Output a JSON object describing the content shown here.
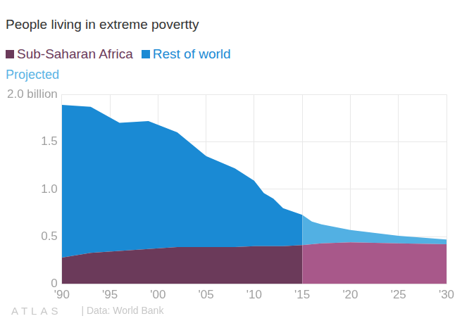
{
  "chart_data": {
    "type": "area",
    "title": "People living in extreme povertty",
    "x": [
      1990,
      1993,
      1996,
      1999,
      2002,
      2005,
      2008,
      2010,
      2011,
      2012,
      2013,
      2015,
      2016,
      2017,
      2020,
      2025,
      2030
    ],
    "series": [
      {
        "name": "Sub-Saharan Africa",
        "color": "#6b3a5a",
        "values": [
          0.28,
          0.33,
          0.35,
          0.37,
          0.39,
          0.39,
          0.39,
          0.4,
          0.4,
          0.4,
          0.4,
          0.41,
          null,
          null,
          null,
          null,
          null
        ]
      },
      {
        "name": "Rest of world",
        "color": "#1a8ad4",
        "values": [
          1.61,
          1.54,
          1.35,
          1.35,
          1.21,
          0.96,
          0.83,
          0.69,
          0.56,
          0.5,
          0.4,
          0.32,
          null,
          null,
          null,
          null,
          null
        ]
      },
      {
        "name": "Sub-Saharan Africa",
        "color": "#a8588a",
        "values": [
          null,
          null,
          null,
          null,
          null,
          null,
          null,
          null,
          null,
          null,
          null,
          0.41,
          0.42,
          0.43,
          0.44,
          0.43,
          0.42
        ]
      },
      {
        "name": "Rest of world",
        "color": "#52b0e3",
        "values": [
          null,
          null,
          null,
          null,
          null,
          null,
          null,
          null,
          null,
          null,
          null,
          0.32,
          0.24,
          0.2,
          0.13,
          0.08,
          0.05
        ]
      }
    ],
    "annotations": [
      {
        "text": "Projected"
      }
    ],
    "xlim": [
      1990,
      2030
    ],
    "xticks": [
      {
        "value": 1990,
        "label": "'90"
      },
      {
        "value": 1995,
        "label": "'95"
      },
      {
        "value": 2000,
        "label": "'00"
      },
      {
        "value": 2005,
        "label": "'05"
      },
      {
        "value": 2010,
        "label": "'10"
      },
      {
        "value": 2015,
        "label": "'15"
      },
      {
        "value": 2020,
        "label": "'20"
      },
      {
        "value": 2025,
        "label": "'25"
      },
      {
        "value": 2030,
        "label": "'30"
      }
    ],
    "ylim": [
      0,
      2.0
    ],
    "yticks": [
      0,
      0.5,
      {
        "value": 1.0,
        "label": "1.0"
      },
      {
        "value": 1.5,
        "label": "1.5"
      },
      {
        "value": 2.0,
        "label": "2.0 billion"
      }
    ],
    "stacked": true,
    "grid": true,
    "legend": "top-left",
    "source": "| Data: World Bank",
    "logo": "ATLAS"
  }
}
